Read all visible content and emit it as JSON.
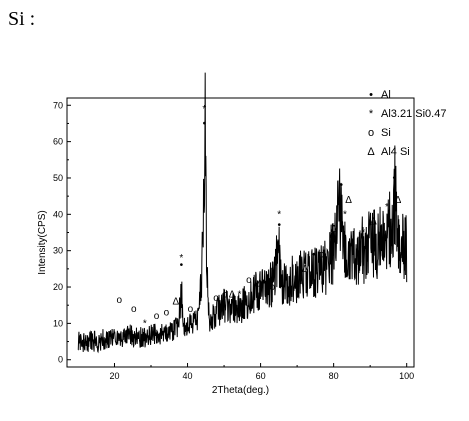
{
  "heading": "Si :",
  "chart_data": {
    "type": "line",
    "xlabel": "2Theta(deg.)",
    "ylabel": "Intensity(CPS)",
    "xlim": [
      7,
      102
    ],
    "ylim": [
      -2,
      72
    ],
    "x_ticks": [
      20,
      40,
      60,
      80,
      100
    ],
    "y_ticks": [
      0,
      10,
      20,
      30,
      40,
      50,
      60,
      70
    ],
    "grid": false,
    "legend_position": "top-right",
    "series": [
      {
        "color": "#000000",
        "x": [
          10,
          15,
          18,
          20,
          22,
          24,
          26,
          28,
          30,
          32,
          34,
          36,
          37.5,
          38.2,
          39,
          41,
          43,
          44.2,
          44.8,
          45.3,
          46,
          48,
          50,
          52,
          54,
          56,
          58,
          60,
          62,
          64,
          64.8,
          65.6,
          67,
          69,
          71,
          73,
          75,
          77,
          78.5,
          80,
          81.5,
          82.5,
          84,
          86,
          88,
          90,
          92,
          94,
          96,
          97,
          98,
          100
        ],
        "y": [
          5,
          5,
          6,
          6,
          6,
          7,
          6,
          6,
          7,
          7,
          7,
          8,
          9,
          20,
          9,
          10,
          11,
          30,
          69,
          24,
          11,
          13,
          15,
          14,
          14,
          16,
          18,
          19,
          20,
          22,
          34,
          21,
          21,
          22,
          23,
          24,
          24,
          25,
          27,
          30,
          46,
          31,
          27,
          29,
          30,
          32,
          31,
          34,
          36,
          48,
          33,
          30
        ]
      }
    ],
    "legend": [
      {
        "symbol": "•",
        "label": "Al"
      },
      {
        "symbol": "*",
        "label": "Al3.21 Si0.47"
      },
      {
        "symbol": "o",
        "label": "Si"
      },
      {
        "symbol": "Δ",
        "label": "Al4 Si"
      }
    ],
    "annotations": [
      {
        "symbol": "o",
        "x": 21.3,
        "y": 16.5
      },
      {
        "symbol": "o",
        "x": 25.3,
        "y": 14
      },
      {
        "symbol": "*",
        "x": 28.3,
        "y": 10
      },
      {
        "symbol": "o",
        "x": 31.5,
        "y": 12
      },
      {
        "symbol": "o",
        "x": 34.2,
        "y": 13
      },
      {
        "symbol": "Δ",
        "x": 36.8,
        "y": 16
      },
      {
        "symbol": "*",
        "x": 38.3,
        "y": 28
      },
      {
        "symbol": "•",
        "x": 38.3,
        "y": 26
      },
      {
        "symbol": "o",
        "x": 40.8,
        "y": 14
      },
      {
        "symbol": "*",
        "x": 44.6,
        "y": 69
      },
      {
        "symbol": "•",
        "x": 44.6,
        "y": 65
      },
      {
        "symbol": "o",
        "x": 47.8,
        "y": 17
      },
      {
        "symbol": "o",
        "x": 50.2,
        "y": 18
      },
      {
        "symbol": "Δ",
        "x": 52.2,
        "y": 18
      },
      {
        "symbol": "*",
        "x": 54.2,
        "y": 18
      },
      {
        "symbol": "o",
        "x": 56.8,
        "y": 22
      },
      {
        "symbol": "Δ",
        "x": 59.8,
        "y": 21
      },
      {
        "symbol": "•",
        "x": 61.6,
        "y": 20
      },
      {
        "symbol": "*",
        "x": 61.6,
        "y": 18
      },
      {
        "symbol": "o",
        "x": 63.2,
        "y": 20
      },
      {
        "symbol": "*",
        "x": 65.1,
        "y": 40
      },
      {
        "symbol": "•",
        "x": 65.1,
        "y": 37
      },
      {
        "symbol": "Δ",
        "x": 72.2,
        "y": 25
      },
      {
        "symbol": "•",
        "x": 74.6,
        "y": 29
      },
      {
        "symbol": "o",
        "x": 76.6,
        "y": 29
      },
      {
        "symbol": "o",
        "x": 79.6,
        "y": 34
      },
      {
        "symbol": "Δ",
        "x": 80.1,
        "y": 36
      },
      {
        "symbol": "•",
        "x": 82.1,
        "y": 48
      },
      {
        "symbol": "*",
        "x": 83.1,
        "y": 40
      },
      {
        "symbol": "Δ",
        "x": 84.1,
        "y": 44
      },
      {
        "symbol": "*",
        "x": 88.1,
        "y": 35
      },
      {
        "symbol": "Δ",
        "x": 90.9,
        "y": 38
      },
      {
        "symbol": "*",
        "x": 94.6,
        "y": 42
      },
      {
        "symbol": "•",
        "x": 96.6,
        "y": 50
      },
      {
        "symbol": "Δ",
        "x": 97.6,
        "y": 44
      }
    ]
  }
}
